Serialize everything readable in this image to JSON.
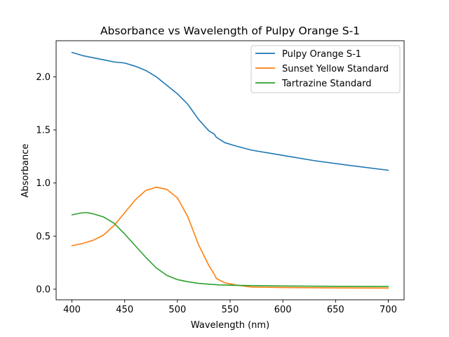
{
  "chart_data": {
    "type": "line",
    "title": "Absorbance vs Wavelength of Pulpy Orange S-1",
    "xlabel": "Wavelength (nm)",
    "ylabel": "Absorbance",
    "xlim": [
      385,
      715
    ],
    "ylim": [
      -0.1,
      2.34
    ],
    "xticks": [
      400,
      450,
      500,
      550,
      600,
      650,
      700
    ],
    "yticks": [
      0.0,
      0.5,
      1.0,
      1.5,
      2.0
    ],
    "xtick_labels": [
      "400",
      "450",
      "500",
      "550",
      "600",
      "650",
      "700"
    ],
    "ytick_labels": [
      "0.0",
      "0.5",
      "1.0",
      "1.5",
      "2.0"
    ],
    "grid": false,
    "legend_position": "top-right",
    "series": [
      {
        "name": "Pulpy Orange S-1",
        "color": "#1f77b4",
        "x": [
          400,
          410,
          420,
          430,
          440,
          450,
          460,
          470,
          480,
          490,
          500,
          510,
          520,
          530,
          535,
          537,
          545,
          555,
          570,
          600,
          630,
          660,
          700
        ],
        "y": [
          2.23,
          2.2,
          2.18,
          2.16,
          2.14,
          2.13,
          2.1,
          2.06,
          2.0,
          1.92,
          1.84,
          1.74,
          1.6,
          1.49,
          1.46,
          1.43,
          1.38,
          1.35,
          1.31,
          1.26,
          1.21,
          1.17,
          1.12
        ]
      },
      {
        "name": "Sunset Yellow Standard",
        "color": "#ff7f0e",
        "x": [
          400,
          410,
          420,
          430,
          440,
          450,
          460,
          470,
          480,
          490,
          500,
          510,
          520,
          530,
          535,
          537,
          545,
          555,
          570,
          600,
          650,
          700
        ],
        "y": [
          0.41,
          0.43,
          0.46,
          0.51,
          0.6,
          0.72,
          0.84,
          0.93,
          0.96,
          0.94,
          0.86,
          0.68,
          0.42,
          0.22,
          0.14,
          0.1,
          0.06,
          0.04,
          0.02,
          0.015,
          0.012,
          0.01
        ]
      },
      {
        "name": "Tartrazine Standard",
        "color": "#2ca02c",
        "x": [
          400,
          405,
          410,
          415,
          420,
          430,
          440,
          450,
          460,
          470,
          480,
          490,
          500,
          510,
          520,
          530,
          540,
          560,
          600,
          650,
          700
        ],
        "y": [
          0.7,
          0.71,
          0.72,
          0.72,
          0.71,
          0.68,
          0.62,
          0.52,
          0.41,
          0.3,
          0.2,
          0.13,
          0.09,
          0.07,
          0.055,
          0.047,
          0.04,
          0.035,
          0.03,
          0.027,
          0.025
        ]
      }
    ]
  }
}
